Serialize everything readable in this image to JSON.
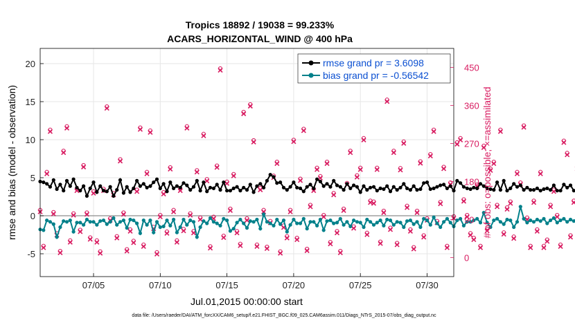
{
  "chart_data": {
    "type": "line",
    "title": "Tropics 18892 / 19038 = 99.233%",
    "subtitle": "ACARS_HORIZONTAL_WIND @ 400 hPa",
    "xlabel": "Jul.01,2015 00:00:00 start",
    "ylabel": "rmse and bias (model - observation)",
    "y2label": "# of obs: o=possible; ×=assimilated",
    "footnote": "data file: /Users/raeder/DAI/ATM_forcXX/CAM6_setup/f.e21.FHIST_BGC.f09_025.CAM6assim.011/Diags_NTrS_2015-07/obs_diag_output.nc",
    "xlim": [
      1,
      32
    ],
    "ylim": [
      -8,
      22
    ],
    "y2lim": [
      -45,
      495
    ],
    "xticks": [
      5,
      10,
      15,
      20,
      25,
      30
    ],
    "xtick_labels": [
      "07/05",
      "07/10",
      "07/15",
      "07/20",
      "07/25",
      "07/30"
    ],
    "yticks": [
      -5,
      0,
      5,
      10,
      15,
      20
    ],
    "y2ticks": [
      0,
      90,
      180,
      270,
      360,
      450
    ],
    "grid": true,
    "legend_position": "top-right",
    "series": [
      {
        "name": "rmse grand pr = 3.6098",
        "color": "#000000",
        "start_day": 1,
        "step_days": 0.25,
        "values": [
          4.5,
          4.4,
          4.2,
          3.8,
          4.7,
          3.5,
          4.1,
          3.3,
          4.6,
          3.9,
          4.8,
          3.7,
          3.3,
          3.9,
          2.6,
          3.6,
          4.4,
          3.1,
          3.9,
          3.3,
          3.2,
          3.8,
          2.6,
          3.4,
          4.7,
          3.0,
          3.8,
          3.1,
          3.6,
          4.6,
          3.9,
          4.2,
          3.7,
          3.9,
          4.4,
          4.8,
          3.6,
          4.2,
          3.2,
          4.4,
          3.6,
          3.9,
          3.7,
          4.3,
          4.0,
          3.4,
          3.8,
          4.6,
          3.3,
          4.4,
          3.2,
          3.7,
          3.6,
          4.1,
          3.4,
          4.4,
          3.3,
          3.3,
          3.6,
          3.8,
          3.3,
          3.7,
          3.4,
          4.1,
          3.1,
          3.9,
          4.2,
          3.7,
          4.6,
          5.4,
          5.1,
          4.3,
          4.4,
          3.7,
          3.4,
          3.8,
          4.4,
          3.7,
          3.6,
          3.2,
          3.8,
          4.1,
          3.6,
          4.8,
          4.5,
          3.9,
          4.2,
          3.8,
          4.6,
          4.0,
          3.8,
          3.4,
          4.2,
          3.6,
          4.0,
          3.8,
          3.1,
          3.9,
          3.4,
          3.7,
          3.8,
          3.3,
          3.6,
          3.5,
          3.9,
          3.2,
          3.8,
          3.4,
          3.7,
          4.2,
          3.6,
          3.4,
          3.9,
          3.4,
          3.5,
          4.3,
          4.4,
          3.5,
          3.6,
          3.8,
          4.0,
          4.1,
          3.6,
          3.9,
          3.3,
          4.6,
          4.3,
          3.8,
          3.6,
          3.5,
          3.7,
          3.6,
          4.2,
          3.9,
          3.6,
          3.5,
          3.4,
          4.4,
          3.4,
          4.6,
          3.3,
          3.6,
          4.2,
          3.8,
          4.0,
          3.4,
          3.7,
          3.4,
          3.4,
          3.6,
          3.3,
          3.5,
          3.6,
          3.4,
          4.0,
          3.3,
          3.3,
          4.1,
          3.7,
          4.0,
          3.3,
          3.3,
          4.2,
          3.4,
          3.2,
          3.5,
          3.4,
          3.3,
          3.4,
          3.4,
          3.3,
          3.8,
          3.2,
          4.1,
          3.5,
          4.1,
          3.1,
          3.5,
          3.8,
          3.4,
          3.6,
          3.6,
          3.5,
          3.2,
          3.9,
          3.3,
          3.7,
          3.9,
          3.6,
          3.4,
          3.6,
          3.2,
          3.4,
          3.8,
          3.5,
          3.7,
          3.8,
          3.7,
          4.3,
          3.4,
          3.7,
          3.2,
          5.3,
          5.4,
          3.4,
          4.3,
          3.1
        ]
      },
      {
        "name": "bias grand pr = -0.56542",
        "color": "#00808a",
        "start_day": 1,
        "step_days": 0.25,
        "values": [
          -1.8,
          -1.9,
          -0.6,
          -0.8,
          -1.1,
          -2.8,
          -1.5,
          -0.7,
          -0.8,
          -0.6,
          -2.1,
          -0.9,
          -0.9,
          -1.2,
          -0.5,
          -0.8,
          -0.8,
          -1.2,
          -0.7,
          -0.6,
          -1.1,
          -0.8,
          -0.3,
          -1.2,
          -0.8,
          -0.6,
          -1.6,
          -0.5,
          -0.6,
          -1.0,
          -2.3,
          -0.6,
          -1.2,
          -0.6,
          -2.2,
          -0.8,
          -1.5,
          -1.4,
          -0.6,
          -1.3,
          -0.5,
          -2.2,
          -1.5,
          -0.5,
          -1.2,
          -0.6,
          -0.8,
          -2.8,
          -1.5,
          -0.7,
          -1.0,
          -0.3,
          -0.8,
          -1.0,
          -1.3,
          -0.4,
          -0.6,
          -2.0,
          -1.7,
          -0.9,
          -0.5,
          -1.0,
          -1.6,
          -0.7,
          -0.8,
          -0.5,
          -1.7,
          0.2,
          -0.8,
          -1.0,
          -1.3,
          -0.5,
          -1.1,
          -0.6,
          -2.1,
          -1.2,
          -0.5,
          -1.0,
          -1.0,
          -0.4,
          -1.7,
          -0.8,
          -0.8,
          -1.3,
          -0.5,
          -1.9,
          -0.7,
          -0.6,
          -1.0,
          -0.9,
          -0.4,
          -1.2,
          -0.8,
          -1.4,
          -0.6,
          -0.8,
          -0.9,
          -1.5,
          -0.5,
          -0.8,
          -1.2,
          -0.9,
          -0.6,
          -1.3,
          -0.5,
          -0.6,
          -1.2,
          -0.8,
          -0.9,
          -1.5,
          -0.7,
          -0.6,
          -1.1,
          -0.8,
          -1.5,
          -0.4,
          -0.6,
          -1.2,
          -0.2,
          -1.0,
          -1.5,
          -0.8,
          -0.4,
          -0.9,
          -1.4,
          -0.6,
          -0.4,
          -1.3,
          -0.8,
          -0.8,
          -0.6,
          -0.4,
          -0.9,
          0.4,
          -0.9,
          -1.5,
          -0.6,
          -0.4,
          -0.8,
          -1.1,
          -0.5,
          -0.6,
          -1.5,
          -0.8,
          1.2,
          -0.4,
          -0.9,
          -0.6,
          -0.8,
          -0.5,
          -0.7,
          -0.4,
          -1.0,
          -0.6,
          -0.3,
          -0.9,
          -0.6,
          -0.4,
          -0.8,
          -0.5,
          -0.7,
          -0.3,
          -0.6,
          -0.8,
          -0.5,
          -0.6,
          -0.4,
          -0.7,
          -0.4,
          -0.9,
          -0.2,
          -0.6,
          -0.5,
          -0.8,
          -0.4,
          -0.8,
          -0.5,
          -0.3,
          -0.7,
          -0.4,
          -1.1,
          -0.6,
          -0.4,
          -0.9,
          -0.5,
          -0.3,
          -0.8,
          -0.6,
          -0.5,
          -0.4,
          -0.8,
          -1.0,
          -0.5,
          -0.4,
          -0.3,
          -0.7,
          -0.8,
          -0.5,
          -0.4,
          -0.8,
          -0.4,
          -0.2,
          -0.6,
          -0.6,
          -0.5,
          -0.7,
          -0.6,
          -0.4,
          -0.8,
          -0.5
        ]
      }
    ],
    "obs_counts": {
      "name": "# of obs (possible / assimilated)",
      "color": "#d81b60",
      "start_day": 1,
      "step_days": 0.25,
      "values": [
        110,
        25,
        200,
        300,
        105,
        55,
        13,
        250,
        308,
        38,
        102,
        160,
        63,
        216,
        104,
        45,
        154,
        38,
        12,
        160,
        355,
        90,
        150,
        48,
        230,
        104,
        17,
        64,
        37,
        158,
        305,
        28,
        200,
        298,
        70,
        10,
        98,
        152,
        59,
        211,
        110,
        38,
        160,
        65,
        308,
        102,
        60,
        204,
        92,
        290,
        183,
        24,
        94,
        215,
        445,
        49,
        177,
        113,
        195,
        60,
        30,
        342,
        90,
        360,
        275,
        28,
        162,
        110,
        23,
        84,
        191,
        224,
        12,
        73,
        48,
        110,
        276,
        44,
        184,
        302,
        18,
        122,
        160,
        210,
        190,
        98,
        224,
        34,
        150,
        60,
        13,
        113,
        174,
        250,
        71,
        192,
        210,
        280,
        56,
        132,
        130,
        210,
        35,
        108,
        371,
        68,
        250,
        32,
        209,
        272,
        120,
        64,
        22,
        108,
        225,
        50,
        90,
        242,
        300,
        84,
        129,
        212,
        25,
        175,
        95,
        270,
        280,
        135,
        98,
        55,
        44,
        170,
        25,
        262,
        65,
        208,
        224,
        122,
        300,
        57,
        116,
        130,
        47,
        200,
        175,
        310,
        92,
        25,
        132,
        64,
        200,
        25,
        40,
        122,
        158,
        98,
        28,
        274,
        245,
        50,
        132,
        212,
        232,
        112,
        195,
        122,
        68,
        28,
        256,
        80,
        33,
        238,
        204,
        48,
        102,
        300,
        28,
        108,
        138,
        36,
        270,
        198,
        48,
        160,
        0,
        112,
        256
      ]
    }
  }
}
